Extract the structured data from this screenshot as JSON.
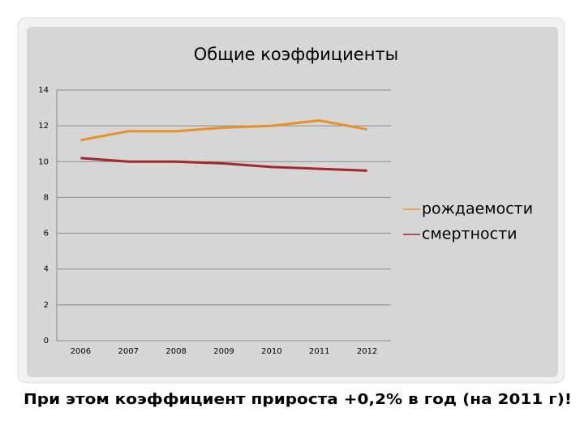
{
  "chart_data": {
    "type": "line",
    "title": "Общие коэффициенты",
    "categories": [
      "2006",
      "2007",
      "2008",
      "2009",
      "2010",
      "2011",
      "2012"
    ],
    "series": [
      {
        "name": "рождаемости",
        "color": "#e8902a",
        "values": [
          11.2,
          11.7,
          11.7,
          11.9,
          12.0,
          12.3,
          11.8
        ]
      },
      {
        "name": "смертности",
        "color": "#a3282e",
        "values": [
          10.2,
          10.0,
          10.0,
          9.9,
          9.7,
          9.6,
          9.5
        ]
      }
    ],
    "ylim": [
      0,
      14
    ],
    "yticks": [
      0,
      2,
      4,
      6,
      8,
      10,
      12,
      14
    ],
    "grid": true,
    "legend": "right"
  },
  "caption": "При этом коэффициент прироста +0,2% в год (на 2011 г)!"
}
